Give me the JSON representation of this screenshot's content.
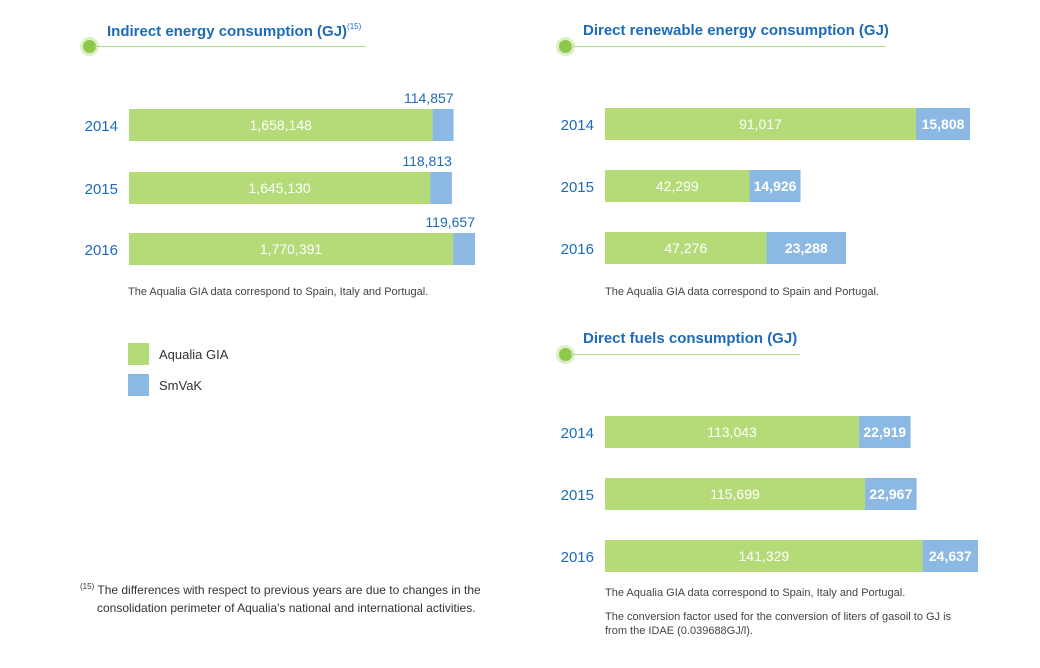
{
  "colors": {
    "primary": "#b5db78",
    "secondary": "#8cb9e4",
    "year": "#1d6bb9",
    "title": "#1d6bb9"
  },
  "legend": {
    "items": [
      {
        "label": "Aqualia GIA",
        "color": "#b5db78"
      },
      {
        "label": "SmVaK",
        "color": "#8cb9e4"
      }
    ]
  },
  "footnote": {
    "marker": "(15)",
    "line1": "The differences with respect to previous years are due to changes in the",
    "line2": "consolidation perimeter of Aqualia's national and international activities."
  },
  "panels": [
    {
      "title": "Indirect energy consumption (GJ)",
      "title_sup": "(15)",
      "notes": [
        "The Aqualia GIA data correspond to Spain, Italy and Portugal."
      ]
    },
    {
      "title": "Direct renewable energy consumption (GJ)",
      "notes": [
        "The Aqualia GIA data correspond to Spain and Portugal."
      ]
    },
    {
      "title": "Direct fuels consumption (GJ)",
      "notes": [
        "The Aqualia GIA data correspond to Spain, Italy and Portugal.",
        "The conversion factor used for the conversion of liters of gasoil to GJ is",
        "from the IDAE (0.039688GJ/l)."
      ]
    }
  ],
  "chart_data": [
    {
      "type": "bar",
      "orientation": "horizontal",
      "stacked": true,
      "title": "Indirect energy consumption (GJ)",
      "categories": [
        "2014",
        "2015",
        "2016"
      ],
      "series": [
        {
          "name": "Aqualia GIA",
          "values": [
            1658148,
            1645130,
            1770391
          ],
          "labels": [
            "1,658,148",
            "1,645,130",
            "1,770,391"
          ]
        },
        {
          "name": "SmVaK",
          "values": [
            114857,
            118813,
            119657
          ],
          "labels": [
            "114,857",
            "118,813",
            "119,657"
          ]
        }
      ],
      "secondary_label_position": "above"
    },
    {
      "type": "bar",
      "orientation": "horizontal",
      "stacked": true,
      "title": "Direct renewable energy consumption (GJ)",
      "categories": [
        "2014",
        "2015",
        "2016"
      ],
      "series": [
        {
          "name": "Aqualia GIA",
          "values": [
            91017,
            42299,
            47276
          ],
          "labels": [
            "91,017",
            "42,299",
            "47,276"
          ]
        },
        {
          "name": "SmVaK",
          "values": [
            15808,
            14926,
            23288
          ],
          "labels": [
            "15,808",
            "14,926",
            "23,288"
          ]
        }
      ],
      "secondary_label_position": "inside"
    },
    {
      "type": "bar",
      "orientation": "horizontal",
      "stacked": true,
      "title": "Direct fuels consumption (GJ)",
      "categories": [
        "2014",
        "2015",
        "2016"
      ],
      "series": [
        {
          "name": "Aqualia GIA",
          "values": [
            113043,
            115699,
            141329
          ],
          "labels": [
            "113,043",
            "115,699",
            "141,329"
          ]
        },
        {
          "name": "SmVaK",
          "values": [
            22919,
            22967,
            24637
          ],
          "labels": [
            "22,919",
            "22,967",
            "24,637"
          ]
        }
      ],
      "secondary_label_position": "inside"
    }
  ]
}
